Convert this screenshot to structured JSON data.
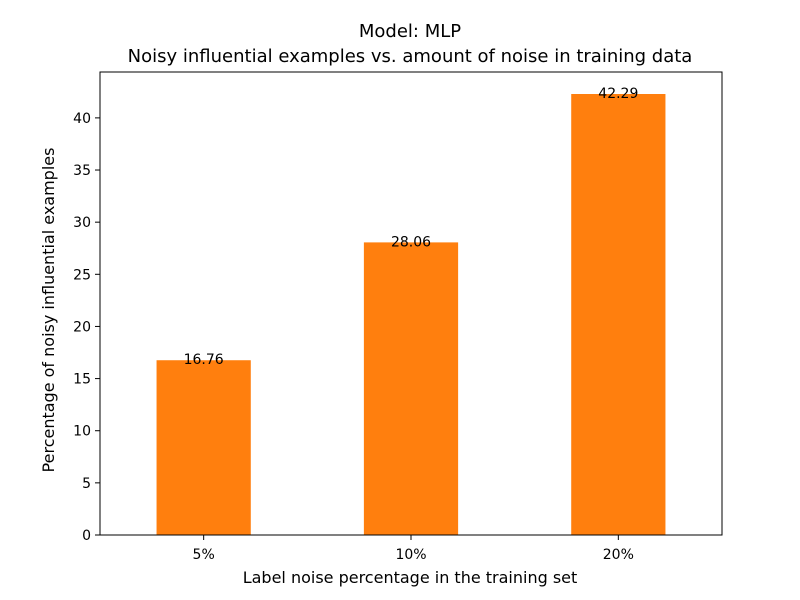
{
  "chart_data": {
    "type": "bar",
    "title": "Model: MLP",
    "subtitle": "Noisy influential examples vs. amount of noise in training data",
    "xlabel": "Label noise percentage in the training set",
    "ylabel": "Percentage of noisy influential examples",
    "categories": [
      "5%",
      "10%",
      "20%"
    ],
    "values": [
      16.76,
      28.06,
      42.29
    ],
    "data_labels": [
      "16.76",
      "28.06",
      "42.29"
    ],
    "ylim": [
      0,
      44.4
    ],
    "yticks": [
      0,
      5,
      10,
      15,
      20,
      25,
      30,
      35,
      40
    ],
    "grid": false,
    "legend": "none",
    "bar_color": "#ff7f0e"
  }
}
